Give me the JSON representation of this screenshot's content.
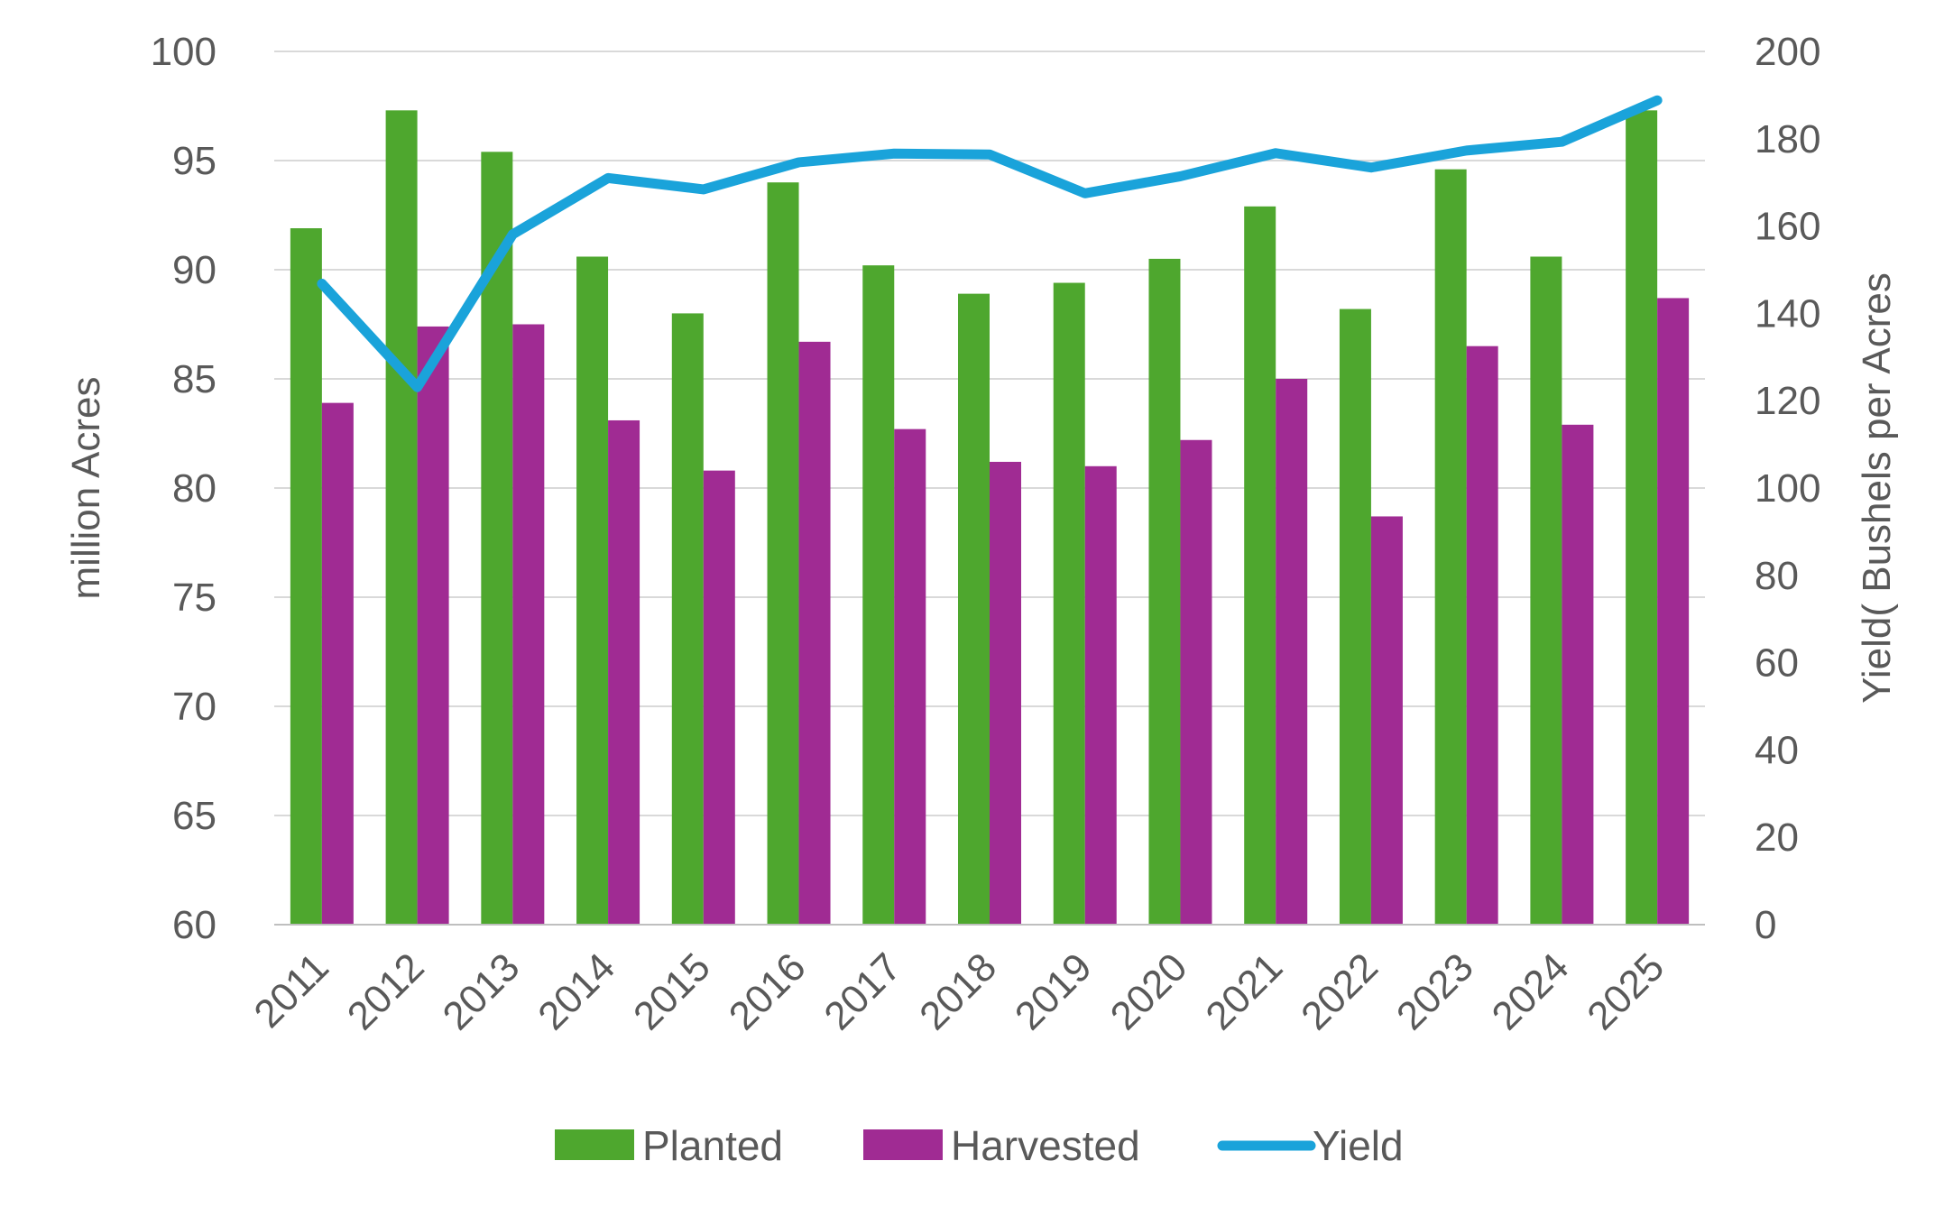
{
  "chart_data": {
    "type": "bar",
    "title": "",
    "categories": [
      "2011",
      "2012",
      "2013",
      "2014",
      "2015",
      "2016",
      "2017",
      "2018",
      "2019",
      "2020",
      "2021",
      "2022",
      "2023",
      "2024",
      "2025"
    ],
    "series": [
      {
        "name": "Planted",
        "type": "bar",
        "axis": "left",
        "color": "#4EA72E",
        "values": [
          91.9,
          97.3,
          95.4,
          90.6,
          88.0,
          94.0,
          90.2,
          88.9,
          89.4,
          90.5,
          92.9,
          88.2,
          94.6,
          90.6,
          97.3
        ]
      },
      {
        "name": "Harvested",
        "type": "bar",
        "axis": "left",
        "color": "#A02B93",
        "values": [
          83.9,
          87.4,
          87.5,
          83.1,
          80.8,
          86.7,
          82.7,
          81.2,
          81.0,
          82.2,
          85.0,
          78.7,
          86.5,
          82.9,
          88.7
        ]
      },
      {
        "name": "Yield",
        "type": "line",
        "axis": "right",
        "color": "#1AA3DA",
        "values": [
          146.8,
          123.1,
          158.1,
          171.0,
          168.4,
          174.6,
          176.6,
          176.4,
          167.5,
          171.4,
          176.7,
          173.4,
          177.3,
          179.3,
          188.8
        ]
      }
    ],
    "ylabel": "million Acres",
    "y2label": "Yield( Bushels per Acres",
    "ylim": [
      60,
      100
    ],
    "yticks": [
      "60",
      "65",
      "70",
      "75",
      "80",
      "85",
      "90",
      "95",
      "100"
    ],
    "y2lim": [
      0,
      200
    ],
    "y2ticks": [
      "0",
      "20",
      "40",
      "60",
      "80",
      "100",
      "120",
      "140",
      "160",
      "180",
      "200"
    ],
    "grid": true,
    "legend_position": "bottom"
  }
}
